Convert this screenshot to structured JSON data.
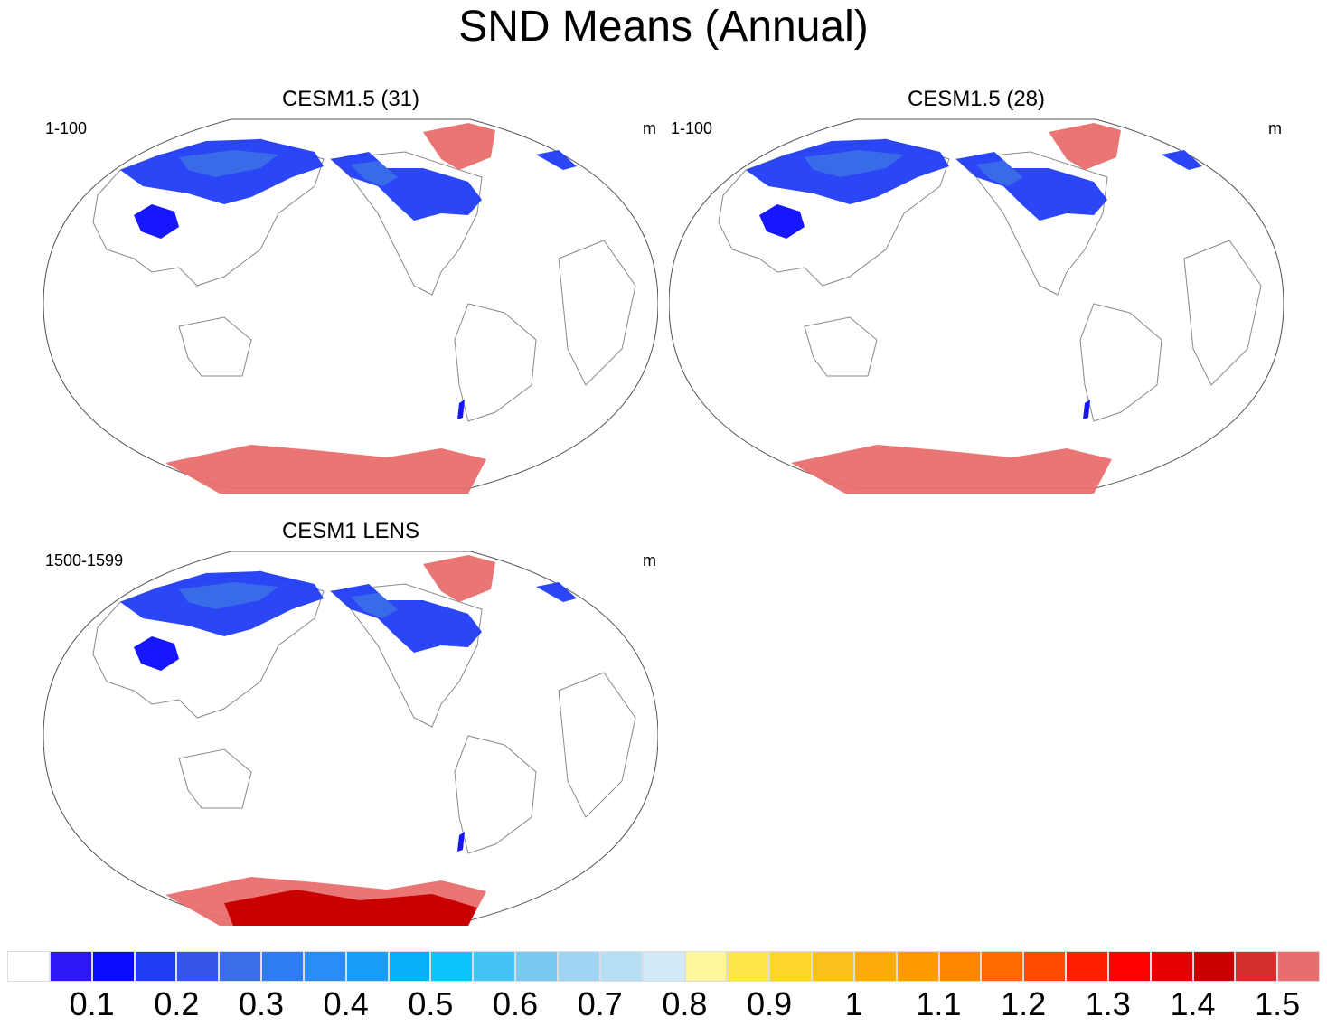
{
  "title": "SND Means (Annual)",
  "panels": [
    {
      "title": "CESM1.5 (31)",
      "left_label": "1-100",
      "units": "m"
    },
    {
      "title": "CESM1.5 (28)",
      "left_label": "1-100",
      "units": "m"
    },
    {
      "title": "CESM1 LENS",
      "left_label": "1500-1599",
      "units": "m"
    }
  ],
  "colorbar": {
    "colors": [
      "#ffffff",
      "#2f16f5",
      "#0a0aff",
      "#1f3cf5",
      "#3555e8",
      "#3a6ee8",
      "#2f7df2",
      "#2a8cf5",
      "#1a9df7",
      "#0ab0f7",
      "#0ac4fa",
      "#45c3f7",
      "#78c8f0",
      "#9fd4f2",
      "#b6dff5",
      "#d1e9f7",
      "#fff59a",
      "#fde64a",
      "#fed62a",
      "#fcc01e",
      "#fdaa0a",
      "#ff9a00",
      "#ff8600",
      "#ff6a00",
      "#ff4a00",
      "#ff1e00",
      "#ff0000",
      "#e60000",
      "#c90000",
      "#d62d2d",
      "#e86e6e"
    ],
    "labels": [
      "0.1",
      "0.2",
      "0.3",
      "0.4",
      "0.5",
      "0.6",
      "0.7",
      "0.8",
      "0.9",
      "1",
      "1.1",
      "1.2",
      "1.3",
      "1.4",
      "1.5"
    ]
  }
}
